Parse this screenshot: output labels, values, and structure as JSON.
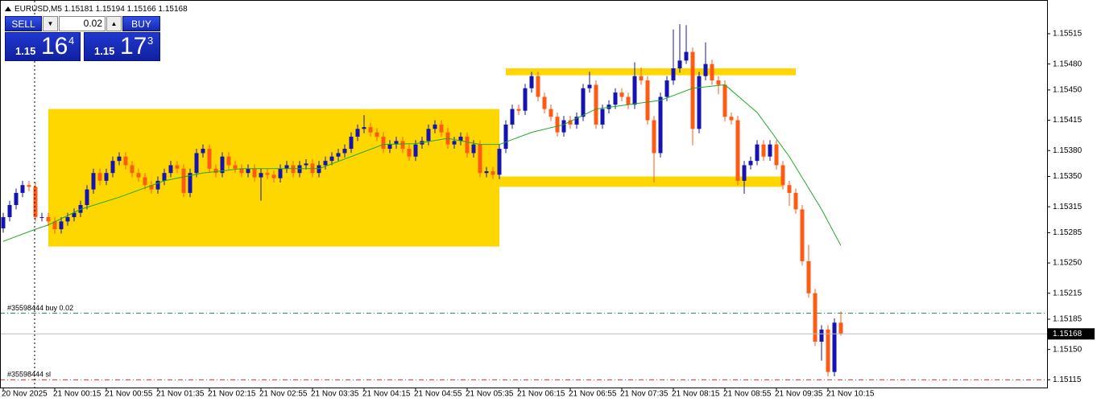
{
  "chart_data": {
    "type": "candlestick",
    "symbol": "EURUSD,M5",
    "categories": [
      "20 Nov 2025",
      null,
      null,
      null,
      null,
      null,
      null,
      null,
      "21 Nov 00:15",
      null,
      null,
      null,
      null,
      null,
      null,
      null,
      "21 Nov 00:55",
      null,
      null,
      null,
      null,
      null,
      null,
      null,
      "21 Nov 01:35",
      null,
      null,
      null,
      null,
      null,
      null,
      null,
      "21 Nov 02:15",
      null,
      null,
      null,
      null,
      null,
      null,
      null,
      "21 Nov 02:55",
      null,
      null,
      null,
      null,
      null,
      null,
      null,
      "21 Nov 03:35",
      null,
      null,
      null,
      null,
      null,
      null,
      null,
      "21 Nov 04:15",
      null,
      null,
      null,
      null,
      null,
      null,
      null,
      "21 Nov 04:55",
      null,
      null,
      null,
      null,
      null,
      null,
      null,
      "21 Nov 05:35",
      null,
      null,
      null,
      null,
      null,
      null,
      null,
      "21 Nov 06:15",
      null,
      null,
      null,
      null,
      null,
      null,
      null,
      "21 Nov 06:55",
      null,
      null,
      null,
      null,
      null,
      null,
      null,
      "21 Nov 07:35",
      null,
      null,
      null,
      null,
      null,
      null,
      null,
      "21 Nov 08:15",
      null,
      null,
      null,
      null,
      null,
      null,
      null,
      "21 Nov 08:55",
      null,
      null,
      null,
      null,
      null,
      null,
      null,
      "21 Nov 09:35",
      null,
      null,
      null,
      null,
      null,
      null,
      null,
      "21 Nov 10:15",
      null,
      null
    ],
    "open": [
      1.1529,
      1.15303,
      1.15317,
      1.15331,
      1.1534,
      1.15338,
      1.15303,
      1.15303,
      1.15298,
      1.15289,
      1.15298,
      1.15303,
      1.15308,
      1.15317,
      1.15335,
      1.15354,
      1.15345,
      1.15354,
      1.15368,
      1.15373,
      1.15363,
      1.15354,
      1.15349,
      1.1534,
      1.15335,
      1.15345,
      1.15354,
      1.15363,
      1.15359,
      1.15331,
      1.15354,
      1.15377,
      1.15382,
      1.15359,
      1.15354,
      1.15373,
      1.15363,
      1.15359,
      1.15354,
      1.15359,
      1.15349,
      1.15354,
      1.15352,
      1.15348,
      1.15359,
      1.15363,
      1.15354,
      1.15363,
      1.15365,
      1.15354,
      1.15363,
      1.15368,
      1.15373,
      1.15377,
      1.15382,
      1.15396,
      1.15405,
      1.15407,
      1.15401,
      1.15396,
      1.15382,
      1.15387,
      1.15391,
      1.15382,
      1.15373,
      1.15387,
      1.15391,
      1.15405,
      1.1541,
      1.15401,
      1.15387,
      1.15391,
      1.15396,
      1.15377,
      1.15387,
      1.15354,
      1.15356,
      1.15352,
      1.15382,
      1.1541,
      1.15428,
      1.15426,
      1.15452,
      1.15466,
      1.15442,
      1.15428,
      1.15419,
      1.15401,
      1.15415,
      1.1541,
      1.15419,
      1.15452,
      1.15456,
      1.1541,
      1.15428,
      1.15433,
      1.15447,
      1.15442,
      1.15433,
      1.15466,
      1.15461,
      1.15415,
      1.15377,
      1.15442,
      1.15461,
      1.15475,
      1.15484,
      1.15494,
      1.15405,
      1.15466,
      1.1548,
      1.15461,
      1.15456,
      1.15419,
      1.15415,
      1.15345,
      1.15363,
      1.15368,
      1.15387,
      1.15373,
      1.15387,
      1.15363,
      1.1534,
      1.15331,
      1.15312,
      1.15252,
      1.15215,
      1.15159,
      1.15173,
      1.15124,
      1.15181
    ],
    "high": [
      1.15308,
      1.15322,
      1.15336,
      1.15345,
      1.15345,
      1.15343,
      1.15308,
      1.15308,
      1.15303,
      1.15303,
      1.15308,
      1.15313,
      1.15322,
      1.1534,
      1.15359,
      1.15359,
      1.15359,
      1.15373,
      1.15378,
      1.15378,
      1.15368,
      1.15359,
      1.15354,
      1.15345,
      1.1535,
      1.15359,
      1.15368,
      1.15368,
      1.15364,
      1.15359,
      1.15382,
      1.15387,
      1.15387,
      1.15364,
      1.15378,
      1.15378,
      1.15368,
      1.15364,
      1.15364,
      1.15364,
      1.15359,
      1.15359,
      1.15357,
      1.15364,
      1.15368,
      1.15368,
      1.15368,
      1.1537,
      1.1537,
      1.15368,
      1.15373,
      1.15378,
      1.15382,
      1.15387,
      1.15401,
      1.1541,
      1.15421,
      1.15412,
      1.15406,
      1.15401,
      1.15392,
      1.15396,
      1.15396,
      1.15387,
      1.15392,
      1.15396,
      1.1541,
      1.15415,
      1.15415,
      1.15406,
      1.15396,
      1.15401,
      1.15401,
      1.15392,
      1.15392,
      1.15361,
      1.15361,
      1.15387,
      1.15415,
      1.15433,
      1.15433,
      1.15457,
      1.15471,
      1.15471,
      1.15447,
      1.15433,
      1.15424,
      1.1542,
      1.1542,
      1.15424,
      1.15457,
      1.15471,
      1.15461,
      1.15433,
      1.15438,
      1.15452,
      1.15452,
      1.15447,
      1.15482,
      1.15476,
      1.15466,
      1.1542,
      1.15447,
      1.15466,
      1.1552,
      1.15526,
      1.15525,
      1.15499,
      1.15471,
      1.15505,
      1.15485,
      1.15466,
      1.15461,
      1.15424,
      1.1542,
      1.15368,
      1.15373,
      1.15392,
      1.15392,
      1.15392,
      1.15392,
      1.15368,
      1.15345,
      1.15336,
      1.15317,
      1.15271,
      1.1522,
      1.15178,
      1.15178,
      1.15186,
      1.15194
    ],
    "low": [
      1.15285,
      1.15298,
      1.15312,
      1.15326,
      1.15333,
      1.15298,
      1.15298,
      1.15293,
      1.15284,
      1.15284,
      1.15293,
      1.15298,
      1.15303,
      1.15312,
      1.1533,
      1.1534,
      1.1534,
      1.15349,
      1.15363,
      1.15358,
      1.15349,
      1.15344,
      1.15335,
      1.1533,
      1.1533,
      1.1534,
      1.15349,
      1.15354,
      1.15326,
      1.15326,
      1.15349,
      1.15372,
      1.15354,
      1.15349,
      1.15349,
      1.15358,
      1.15354,
      1.15349,
      1.15349,
      1.15344,
      1.15322,
      1.15347,
      1.15343,
      1.15343,
      1.15354,
      1.15349,
      1.15349,
      1.15358,
      1.15349,
      1.15349,
      1.15358,
      1.15363,
      1.15368,
      1.15372,
      1.15377,
      1.15391,
      1.154,
      1.15396,
      1.15391,
      1.15377,
      1.15377,
      1.15382,
      1.15377,
      1.15368,
      1.15368,
      1.15382,
      1.15386,
      1.154,
      1.15396,
      1.15382,
      1.15382,
      1.15386,
      1.15372,
      1.15372,
      1.15349,
      1.15349,
      1.15347,
      1.15347,
      1.15377,
      1.15405,
      1.15421,
      1.15421,
      1.15447,
      1.15437,
      1.15423,
      1.15414,
      1.15396,
      1.15396,
      1.15405,
      1.15405,
      1.15414,
      1.15447,
      1.15405,
      1.15405,
      1.15423,
      1.15428,
      1.15437,
      1.15428,
      1.15428,
      1.15456,
      1.1541,
      1.15343,
      1.15372,
      1.15437,
      1.15456,
      1.1547,
      1.1548,
      1.15386,
      1.154,
      1.15461,
      1.15456,
      1.15445,
      1.15414,
      1.1541,
      1.1534,
      1.1533,
      1.15358,
      1.15363,
      1.15368,
      1.15368,
      1.15358,
      1.15335,
      1.15316,
      1.15307,
      1.15247,
      1.1521,
      1.15154,
      1.15137,
      1.15119,
      1.15119,
      1.15166
    ],
    "close": [
      1.15303,
      1.15317,
      1.15331,
      1.1534,
      1.15338,
      1.15303,
      1.15303,
      1.15298,
      1.15289,
      1.15298,
      1.15303,
      1.15308,
      1.15317,
      1.15335,
      1.15354,
      1.15345,
      1.15354,
      1.15368,
      1.15373,
      1.15363,
      1.15354,
      1.15349,
      1.1534,
      1.15335,
      1.15345,
      1.15354,
      1.15363,
      1.15359,
      1.15331,
      1.15354,
      1.15377,
      1.15382,
      1.15359,
      1.15354,
      1.15373,
      1.15363,
      1.15359,
      1.15354,
      1.15359,
      1.15349,
      1.15354,
      1.15352,
      1.15348,
      1.15359,
      1.15363,
      1.15354,
      1.15363,
      1.15365,
      1.15354,
      1.15363,
      1.15368,
      1.15373,
      1.15377,
      1.15382,
      1.15396,
      1.15405,
      1.15407,
      1.15401,
      1.15396,
      1.15382,
      1.15387,
      1.15391,
      1.15382,
      1.15373,
      1.15387,
      1.15391,
      1.15405,
      1.1541,
      1.15401,
      1.15387,
      1.15391,
      1.15396,
      1.15377,
      1.15387,
      1.15354,
      1.15356,
      1.15352,
      1.15382,
      1.1541,
      1.15428,
      1.15426,
      1.15452,
      1.15466,
      1.15442,
      1.15428,
      1.15419,
      1.15401,
      1.15415,
      1.1541,
      1.15419,
      1.15452,
      1.15456,
      1.1541,
      1.15428,
      1.15433,
      1.15447,
      1.15442,
      1.15433,
      1.15466,
      1.15461,
      1.15415,
      1.15377,
      1.15442,
      1.15461,
      1.15475,
      1.15484,
      1.15494,
      1.15405,
      1.15466,
      1.1548,
      1.15461,
      1.15456,
      1.15419,
      1.15415,
      1.15345,
      1.15363,
      1.15368,
      1.15387,
      1.15373,
      1.15387,
      1.15363,
      1.1534,
      1.15331,
      1.15312,
      1.15252,
      1.15215,
      1.15159,
      1.15173,
      1.15124,
      1.15181,
      1.15168
    ],
    "up_color": "#1414b4",
    "down_color": "#ff5a14",
    "moving_average": {
      "color": "#22a822",
      "x": [
        0,
        5,
        7,
        12,
        18,
        25,
        31,
        37,
        43,
        49,
        54,
        59,
        64,
        69,
        74,
        77,
        82,
        87,
        92,
        97,
        102,
        107,
        112,
        117,
        122,
        127,
        130
      ],
      "values": [
        1.15275,
        1.15289,
        1.15294,
        1.15312,
        1.15326,
        1.15345,
        1.15354,
        1.15359,
        1.15359,
        1.15359,
        1.15373,
        1.15387,
        1.15388,
        1.15394,
        1.15387,
        1.15387,
        1.15401,
        1.1541,
        1.15428,
        1.15433,
        1.15438,
        1.15452,
        1.15456,
        1.15424,
        1.15373,
        1.15312,
        1.1527
      ]
    },
    "zones": [
      {
        "x": [
          7,
          77
        ],
        "y": [
          1.15428,
          1.15269
        ],
        "color": "#ffd700"
      },
      {
        "x": [
          78,
          123
        ],
        "y": [
          1.15475,
          1.15467
        ],
        "color": "#ffd700"
      },
      {
        "x": [
          77,
          121
        ],
        "y": [
          1.1535,
          1.15338
        ],
        "color": "#ffd700"
      }
    ],
    "orders": [
      {
        "label": "#35598444 buy 0.02",
        "price": 1.15192,
        "color": "#2e8b57"
      },
      {
        "label": "#35598444 sl",
        "price": 1.15115,
        "color": "#e03020"
      }
    ],
    "ylim": [
      1.15106,
      1.15554
    ],
    "yticks": [
      1.15515,
      {
        "value": 1.1548,
        "label": "1.15480"
      },
      {
        "value": 1.1545,
        "label": "1.15450"
      },
      1.15415,
      {
        "value": 1.1538,
        "label": "1.15380"
      },
      {
        "value": 1.1535,
        "label": "1.15350"
      },
      1.15315,
      1.15285,
      {
        "value": 1.1525,
        "label": "1.15250"
      },
      1.15215,
      1.15185,
      {
        "value": 1.1515,
        "label": "1.15150"
      },
      1.15115
    ],
    "grid": false
  },
  "trade_panel": {
    "sell": "SELL",
    "lot": "0.02",
    "buy": "BUY",
    "bid": {
      "prefix": "1.15",
      "big": "16",
      "small": "4"
    },
    "ask": {
      "prefix": "1.15",
      "big": "17",
      "small": "3"
    }
  }
}
